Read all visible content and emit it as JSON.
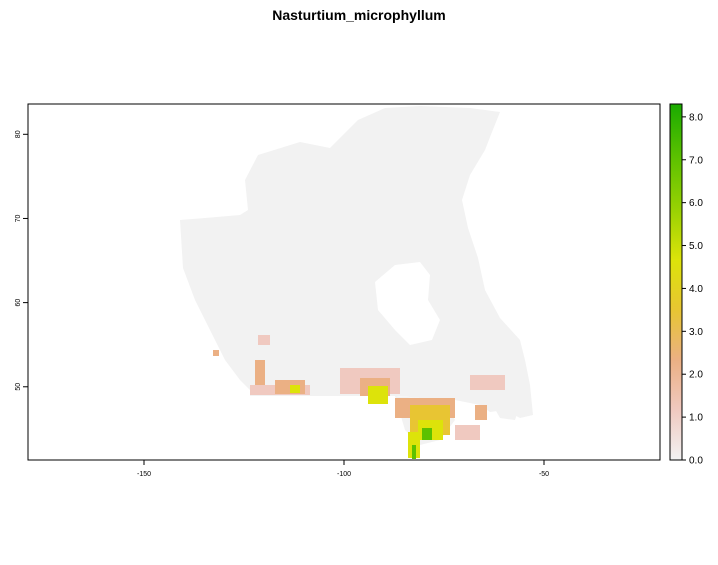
{
  "title": "Nasturtium_microphyllum",
  "map": {
    "x_ticks": [
      {
        "value": -150,
        "label": "-150"
      },
      {
        "value": -100,
        "label": "-100"
      },
      {
        "value": -50,
        "label": "-50"
      }
    ],
    "y_ticks": [
      {
        "value": 80,
        "label": "80"
      },
      {
        "value": 70,
        "label": "70"
      },
      {
        "value": 60,
        "label": "60"
      },
      {
        "value": 50,
        "label": "50"
      }
    ],
    "x_range": [
      -179,
      -21
    ],
    "y_range": [
      41.3,
      83.6
    ],
    "background_land_color": "#f2f2f2"
  },
  "legend": {
    "range": [
      0,
      8.3
    ],
    "labels": [
      {
        "value": 8,
        "label": "8.0"
      },
      {
        "value": 7,
        "label": "7.0"
      },
      {
        "value": 6,
        "label": "6.0"
      },
      {
        "value": 5,
        "label": "5.0"
      },
      {
        "value": 4,
        "label": "4.0"
      },
      {
        "value": 3,
        "label": "3.0"
      },
      {
        "value": 2,
        "label": "2.0"
      },
      {
        "value": 1,
        "label": "1.0"
      },
      {
        "value": 0,
        "label": "0.0"
      }
    ],
    "colors": [
      "#f2f2f2",
      "#f0c9c0",
      "#ebb084",
      "#e8c533",
      "#dde30a",
      "#9ad203",
      "#5cc100",
      "#1aab00"
    ]
  }
}
